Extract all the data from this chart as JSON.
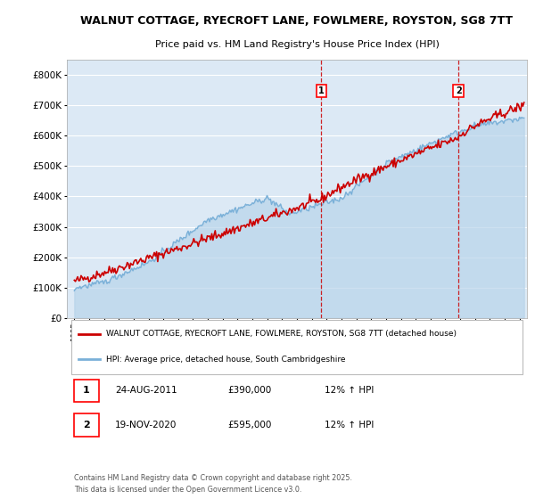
{
  "title_line1": "WALNUT COTTAGE, RYECROFT LANE, FOWLMERE, ROYSTON, SG8 7TT",
  "title_line2": "Price paid vs. HM Land Registry's House Price Index (HPI)",
  "background_color": "#ffffff",
  "plot_bg_color": "#dce9f5",
  "grid_color": "#ffffff",
  "hpi_color": "#7ab0d8",
  "hpi_fill_color": "#b8d4ea",
  "price_color": "#cc0000",
  "purchase1_date": 2011.65,
  "purchase1_price": 390000,
  "purchase2_date": 2020.89,
  "purchase2_price": 595000,
  "legend_price_label": "WALNUT COTTAGE, RYECROFT LANE, FOWLMERE, ROYSTON, SG8 7TT (detached house)",
  "legend_hpi_label": "HPI: Average price, detached house, South Cambridgeshire",
  "annotation1_date": "24-AUG-2011",
  "annotation1_price": "£390,000",
  "annotation1_hpi": "12% ↑ HPI",
  "annotation2_date": "19-NOV-2020",
  "annotation2_price": "£595,000",
  "annotation2_hpi": "12% ↑ HPI",
  "footer": "Contains HM Land Registry data © Crown copyright and database right 2025.\nThis data is licensed under the Open Government Licence v3.0.",
  "ylim_max": 850000,
  "xmin": 1994.5,
  "xmax": 2025.5
}
